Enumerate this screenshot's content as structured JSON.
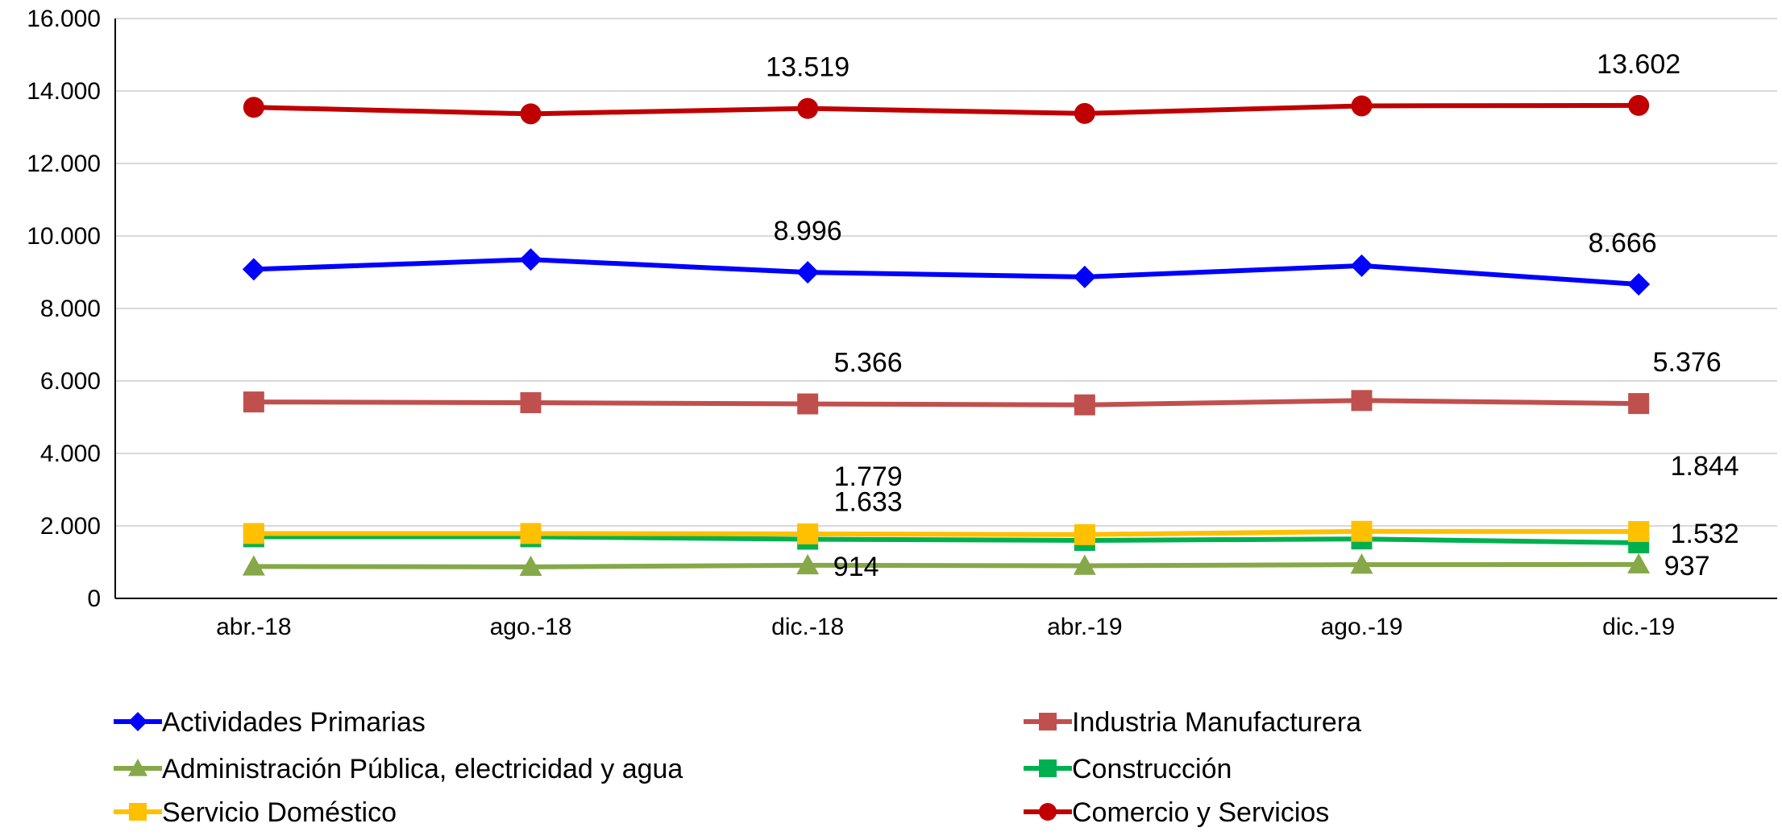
{
  "chart_data": {
    "type": "line",
    "categories": [
      "abr.-18",
      "ago.-18",
      "dic.-18",
      "abr.-19",
      "ago.-19",
      "dic.-19"
    ],
    "ylim": [
      0,
      16000
    ],
    "yticks": [
      0,
      2000,
      4000,
      6000,
      8000,
      10000,
      12000,
      14000,
      16000
    ],
    "ytick_labels": [
      "0",
      "2.000",
      "4.000",
      "6.000",
      "8.000",
      "10.000",
      "12.000",
      "14.000",
      "16.000"
    ],
    "grid": true,
    "legend_position": "bottom",
    "series": [
      {
        "name": "Actividades Primarias",
        "color": "#0000FF",
        "marker": "diamond",
        "values": [
          9080,
          9350,
          8996,
          8870,
          9180,
          8666
        ],
        "labels": [
          null,
          null,
          "8.996",
          null,
          null,
          "8.666"
        ]
      },
      {
        "name": "Industria Manufacturera",
        "color": "#C0504D",
        "marker": "square",
        "values": [
          5420,
          5400,
          5366,
          5340,
          5460,
          5376
        ],
        "labels": [
          null,
          null,
          "5.366",
          null,
          null,
          "5.376"
        ]
      },
      {
        "name": "Administración Pública, electricidad y agua",
        "color": "#86A848",
        "marker": "triangle",
        "values": [
          880,
          870,
          914,
          900,
          930,
          937
        ],
        "labels": [
          null,
          null,
          "914",
          null,
          null,
          "937"
        ]
      },
      {
        "name": "Construcción",
        "color": "#00B050",
        "marker": "square",
        "values": [
          1700,
          1700,
          1633,
          1600,
          1640,
          1532
        ],
        "labels": [
          null,
          null,
          "1.633",
          null,
          null,
          "1.532"
        ]
      },
      {
        "name": "Servicio Doméstico",
        "color": "#FFC000",
        "marker": "square",
        "values": [
          1790,
          1790,
          1779,
          1760,
          1850,
          1844
        ],
        "labels": [
          null,
          null,
          "1.779",
          null,
          null,
          "1.844"
        ]
      },
      {
        "name": "Comercio y Servicios",
        "color": "#C00000",
        "marker": "circle",
        "values": [
          13550,
          13370,
          13519,
          13380,
          13590,
          13602
        ],
        "labels": [
          null,
          null,
          "13.519",
          null,
          null,
          "13.602"
        ]
      }
    ]
  }
}
